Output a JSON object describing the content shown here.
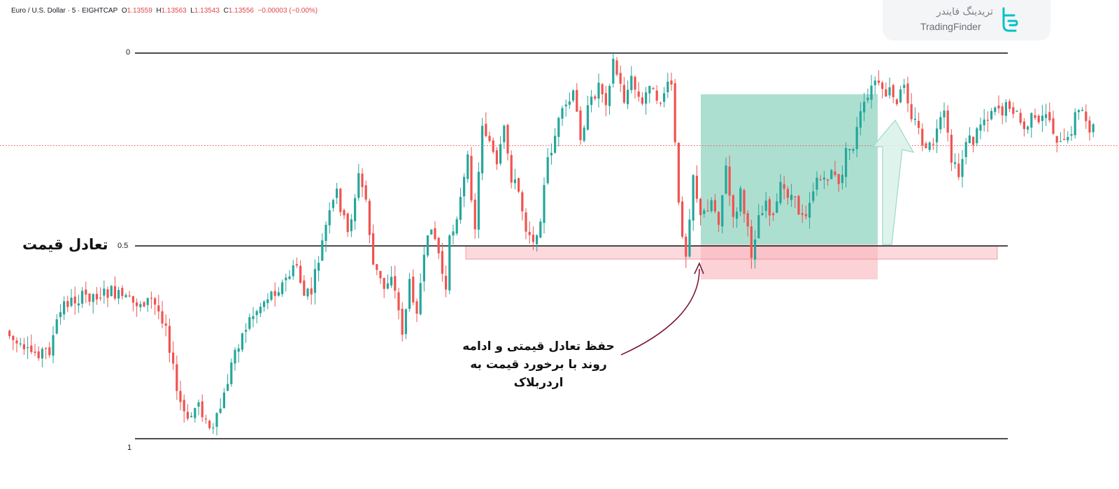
{
  "header": {
    "symbol": "Euro / U.S. Dollar · 5 · EIGHTCAP",
    "o_label": "O",
    "o_value": "1.13559",
    "h_label": "H",
    "h_value": "1.13563",
    "l_label": "L",
    "l_value": "1.13543",
    "c_label": "C",
    "c_value": "1.13556",
    "change": "−0.00003 (−0.00%)"
  },
  "brand": {
    "name_fa": "تریدینگ فایندر",
    "name_en": "TradingFinder",
    "color": "#00c2c7"
  },
  "annotations": {
    "equilibrium_label": "تعادل قیمت",
    "note": "حفظ تعادل قیمتی و ادامه روند با برخورد قیمت به اردربلاک"
  },
  "colors": {
    "bull": "#26a69a",
    "bear": "#ef5350",
    "target_zone": "#5cbfa3",
    "order_block": "#f8b4bb",
    "arrow": "#7a1a3a"
  },
  "chart_data": {
    "type": "candlestick",
    "title": "",
    "xlabel": "",
    "ylabel": "",
    "fib_levels": [
      {
        "label": "0",
        "value": 0
      },
      {
        "label": "0.5",
        "value": 0.5
      },
      {
        "label": "1",
        "value": 1
      }
    ],
    "current_price_line": 0.24,
    "waypoints": [
      [
        0,
        0.72
      ],
      [
        5,
        0.78
      ],
      [
        12,
        0.77
      ],
      [
        14,
        0.7
      ],
      [
        16,
        0.65
      ],
      [
        22,
        0.63
      ],
      [
        29,
        0.62
      ],
      [
        35,
        0.65
      ],
      [
        40,
        0.64
      ],
      [
        44,
        0.7
      ],
      [
        47,
        0.88
      ],
      [
        50,
        0.96
      ],
      [
        53,
        0.9
      ],
      [
        55,
        0.96
      ],
      [
        57,
        0.98
      ],
      [
        60,
        0.89
      ],
      [
        63,
        0.77
      ],
      [
        67,
        0.69
      ],
      [
        72,
        0.63
      ],
      [
        76,
        0.6
      ],
      [
        80,
        0.55
      ],
      [
        82,
        0.63
      ],
      [
        84,
        0.62
      ],
      [
        88,
        0.45
      ],
      [
        91,
        0.36
      ],
      [
        94,
        0.47
      ],
      [
        97,
        0.32
      ],
      [
        99,
        0.38
      ],
      [
        101,
        0.55
      ],
      [
        104,
        0.61
      ],
      [
        106,
        0.57
      ],
      [
        109,
        0.72
      ],
      [
        111,
        0.6
      ],
      [
        113,
        0.66
      ],
      [
        115,
        0.54
      ],
      [
        117,
        0.44
      ],
      [
        119,
        0.52
      ],
      [
        121,
        0.62
      ],
      [
        122,
        0.49
      ],
      [
        125,
        0.38
      ],
      [
        127,
        0.28
      ],
      [
        129,
        0.45
      ],
      [
        131,
        0.18
      ],
      [
        133,
        0.23
      ],
      [
        135,
        0.3
      ],
      [
        137,
        0.2
      ],
      [
        139,
        0.32
      ],
      [
        141,
        0.36
      ],
      [
        143,
        0.45
      ],
      [
        146,
        0.49
      ],
      [
        149,
        0.28
      ],
      [
        152,
        0.18
      ],
      [
        154,
        0.14
      ],
      [
        156,
        0.11
      ],
      [
        158,
        0.21
      ],
      [
        160,
        0.15
      ],
      [
        163,
        0.08
      ],
      [
        165,
        0.12
      ],
      [
        167,
        0.02
      ],
      [
        170,
        0.12
      ],
      [
        172,
        0.07
      ],
      [
        175,
        0.14
      ],
      [
        177,
        0.07
      ],
      [
        179,
        0.14
      ],
      [
        181,
        0.1
      ],
      [
        183,
        0.08
      ],
      [
        185,
        0.4
      ],
      [
        187,
        0.52
      ],
      [
        189,
        0.31
      ],
      [
        191,
        0.43
      ],
      [
        194,
        0.38
      ],
      [
        196,
        0.43
      ],
      [
        198,
        0.3
      ],
      [
        200,
        0.44
      ],
      [
        202,
        0.36
      ],
      [
        205,
        0.52
      ],
      [
        207,
        0.42
      ],
      [
        209,
        0.38
      ],
      [
        211,
        0.43
      ],
      [
        213,
        0.35
      ],
      [
        216,
        0.37
      ],
      [
        218,
        0.41
      ],
      [
        220,
        0.41
      ],
      [
        223,
        0.32
      ],
      [
        225,
        0.34
      ],
      [
        227,
        0.3
      ],
      [
        229,
        0.35
      ],
      [
        231,
        0.26
      ],
      [
        233,
        0.24
      ],
      [
        235,
        0.16
      ],
      [
        237,
        0.12
      ],
      [
        239,
        0.07
      ],
      [
        241,
        0.11
      ],
      [
        243,
        0.1
      ],
      [
        245,
        0.14
      ],
      [
        247,
        0.07
      ],
      [
        249,
        0.16
      ],
      [
        251,
        0.2
      ],
      [
        253,
        0.26
      ],
      [
        255,
        0.23
      ],
      [
        258,
        0.16
      ],
      [
        260,
        0.28
      ],
      [
        262,
        0.32
      ],
      [
        264,
        0.22
      ],
      [
        266,
        0.23
      ],
      [
        268,
        0.18
      ],
      [
        270,
        0.16
      ],
      [
        272,
        0.13
      ],
      [
        274,
        0.15
      ],
      [
        276,
        0.13
      ],
      [
        278,
        0.16
      ],
      [
        280,
        0.2
      ],
      [
        282,
        0.17
      ],
      [
        284,
        0.19
      ],
      [
        286,
        0.15
      ],
      [
        288,
        0.2
      ],
      [
        290,
        0.24
      ],
      [
        292,
        0.23
      ],
      [
        294,
        0.16
      ],
      [
        296,
        0.15
      ],
      [
        298,
        0.19
      ]
    ]
  }
}
